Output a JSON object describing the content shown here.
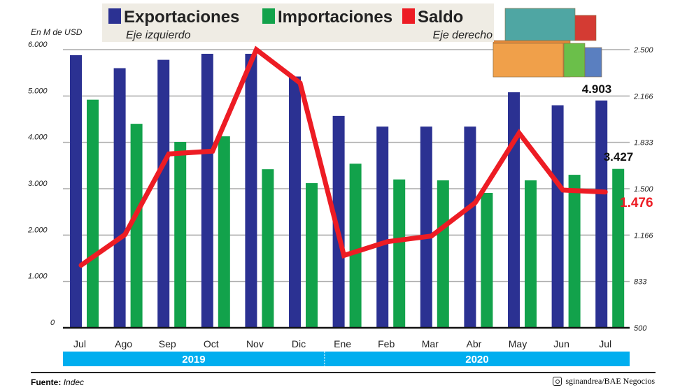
{
  "chart_data": {
    "type": "bar",
    "categories": [
      "Jul",
      "Ago",
      "Sep",
      "Oct",
      "Nov",
      "Dic",
      "Ene",
      "Feb",
      "Mar",
      "Abr",
      "May",
      "Jun",
      "Jul"
    ],
    "years": [
      {
        "label": "2019",
        "span": 6
      },
      {
        "label": "2020",
        "span": 7
      }
    ],
    "series": [
      {
        "name": "Exportaciones",
        "axis_note": "Eje izquierdo",
        "type": "bar",
        "color": "#2b3192",
        "values": [
          5880,
          5600,
          5780,
          5910,
          5910,
          5420,
          4570,
          4340,
          4340,
          4340,
          5080,
          4800,
          4903
        ]
      },
      {
        "name": "Importaciones",
        "type": "bar",
        "color": "#12a24b",
        "values": [
          4920,
          4400,
          4010,
          4130,
          3420,
          3120,
          3540,
          3200,
          3180,
          2910,
          3180,
          3300,
          3427
        ]
      },
      {
        "name": "Saldo",
        "axis_note": "Eje derecho",
        "type": "line",
        "color": "#ed1c24",
        "values": [
          950,
          1170,
          1750,
          1770,
          2500,
          2260,
          1020,
          1120,
          1160,
          1400,
          1900,
          1490,
          1476
        ]
      }
    ],
    "ylabel": "En M de USD",
    "ylim": [
      0,
      6000
    ],
    "yticks": [
      "0",
      "1.000",
      "2.000",
      "3.000",
      "4.000",
      "5.000",
      "6.000"
    ],
    "y2lim": [
      500,
      2500
    ],
    "y2ticks": [
      "500",
      "833",
      "1.166",
      "1.500",
      "1.833",
      "2.166",
      "2.500"
    ],
    "annotations": {
      "export_last": "4.903",
      "import_last": "3.427",
      "saldo_last": "1.476"
    },
    "grid": true,
    "legend_placement": "top"
  },
  "footer": {
    "source_label": "Fuente:",
    "source": "Indec",
    "credit": "sginandrea/BAE Negocios",
    "credit_icon": "instagram-icon"
  }
}
